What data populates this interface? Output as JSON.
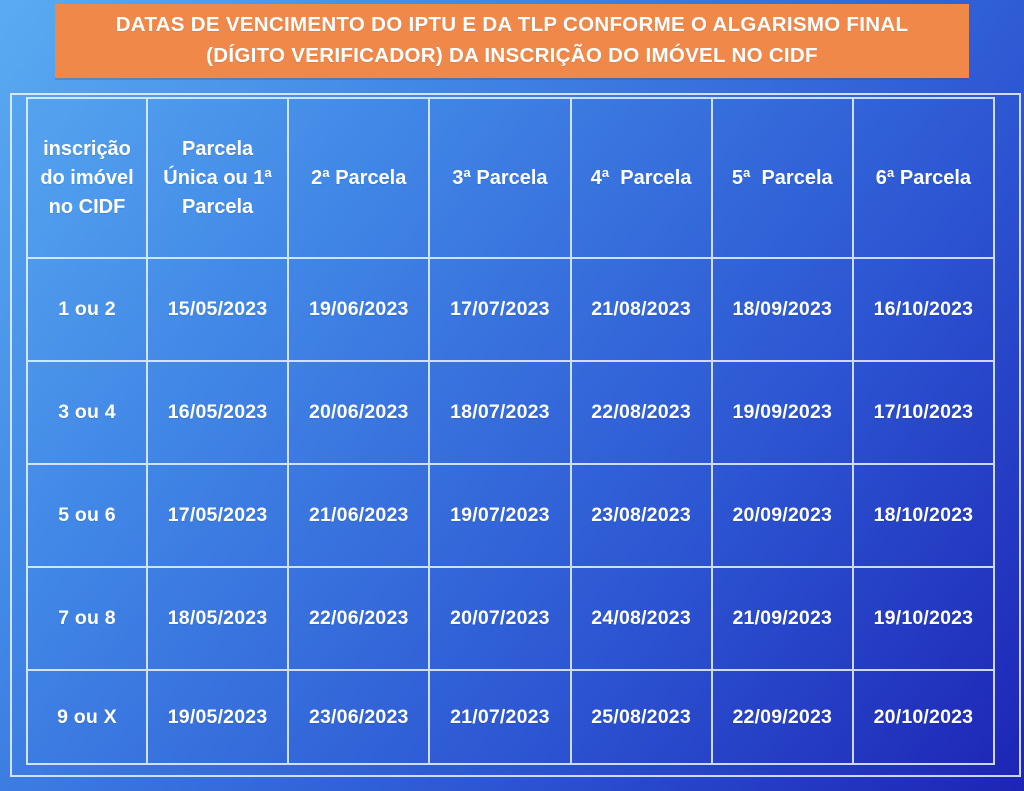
{
  "banner": {
    "title_lines": [
      "DATAS DE VENCIMENTO DO IPTU E DA TLP CONFORME O ALGARISMO FINAL",
      "(DÍGITO VERIFICADOR) DA INSCRIÇÃO DO IMÓVEL NO CIDF"
    ],
    "background_color": "#f0884a"
  },
  "colors": {
    "page_gradient_start": "#5aabf1",
    "page_gradient_end": "#1d24b5",
    "grid_line": "#ebf3ff",
    "text": "#ffffff"
  },
  "table": {
    "headers": [
      "inscrição do imóvel no CIDF",
      "Parcela Única ou 1ª Parcela",
      "2ª Parcela",
      "3ª Parcela",
      "4ª  Parcela",
      "5ª  Parcela",
      "6ª Parcela"
    ],
    "rows": [
      {
        "digit": "1 ou 2",
        "dates": [
          "15/05/2023",
          "19/06/2023",
          "17/07/2023",
          "21/08/2023",
          "18/09/2023",
          "16/10/2023"
        ]
      },
      {
        "digit": "3 ou 4",
        "dates": [
          "16/05/2023",
          "20/06/2023",
          "18/07/2023",
          "22/08/2023",
          "19/09/2023",
          "17/10/2023"
        ]
      },
      {
        "digit": "5 ou 6",
        "dates": [
          "17/05/2023",
          "21/06/2023",
          "19/07/2023",
          "23/08/2023",
          "20/09/2023",
          "18/10/2023"
        ]
      },
      {
        "digit": "7 ou 8",
        "dates": [
          "18/05/2023",
          "22/06/2023",
          "20/07/2023",
          "24/08/2023",
          "21/09/2023",
          "19/10/2023"
        ]
      },
      {
        "digit": "9 ou X",
        "dates": [
          "19/05/2023",
          "23/06/2023",
          "21/07/2023",
          "25/08/2023",
          "22/09/2023",
          "20/10/2023"
        ]
      }
    ]
  }
}
